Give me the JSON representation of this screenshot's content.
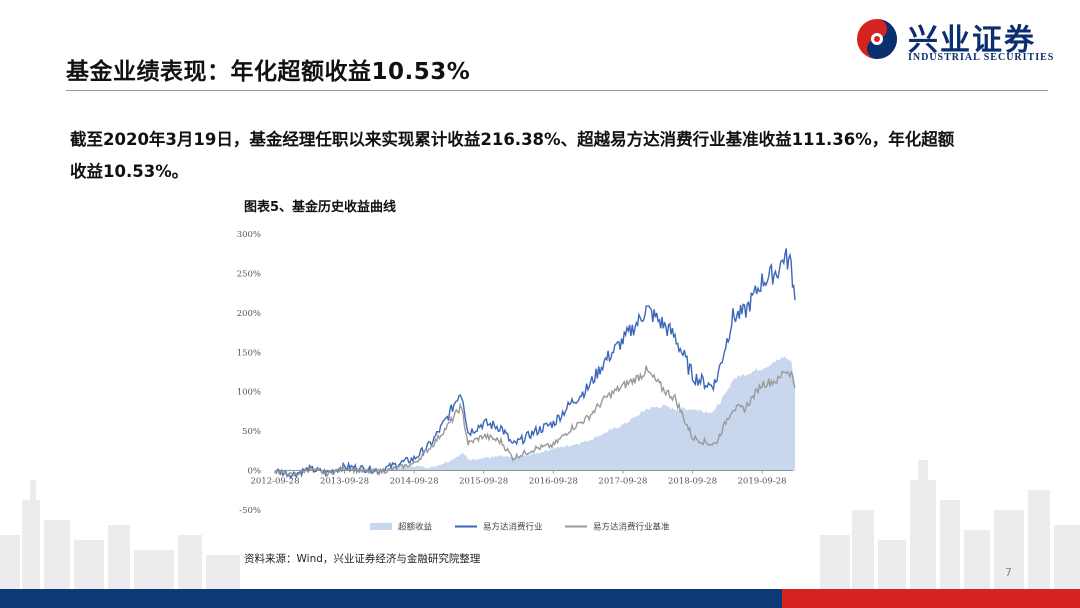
{
  "brand": {
    "name_cn": "兴业证券",
    "name_en": "INDUSTRIAL SECURITIES",
    "logo_colors": {
      "red": "#d5241f",
      "blue": "#0a2f6e"
    }
  },
  "slide": {
    "title": "基金业绩表现：年化超额收益10.53%",
    "summary": "截至2020年3月19日，基金经理任职以来实现累计收益216.38%、超越易方达消费行业基准收益111.36%，年化超额收益10.53%。",
    "chart_title": "图表5、基金历史收益曲线",
    "source": "资料来源：Wind，兴业证券经济与金融研究院整理",
    "page_number": "7"
  },
  "colors": {
    "fund": "#3c67b8",
    "benchmark": "#9a9a9a",
    "excess_fill": "#c9d7ee",
    "bar_blue": "#0e3977",
    "bar_red": "#d5241f"
  },
  "chart_data": {
    "type": "line",
    "title": "",
    "xlabel": "",
    "ylabel": "",
    "x_tick_labels": [
      "2012-09-28",
      "2013-09-28",
      "2014-09-28",
      "2015-09-28",
      "2016-09-28",
      "2017-09-28",
      "2018-09-28",
      "2019-09-28"
    ],
    "y_tick_labels": [
      "300%",
      "250%",
      "200%",
      "150%",
      "100%",
      "50%",
      "0%",
      "-50%"
    ],
    "ylim": [
      -50,
      300
    ],
    "grid": false,
    "legend_position": "bottom",
    "x": [
      "2012-09-28",
      "2012-12-28",
      "2013-03-28",
      "2013-06-28",
      "2013-09-28",
      "2013-12-28",
      "2014-03-28",
      "2014-06-28",
      "2014-09-28",
      "2014-12-28",
      "2015-03-28",
      "2015-05-28",
      "2015-06-12",
      "2015-07-08",
      "2015-09-28",
      "2015-12-28",
      "2016-02-28",
      "2016-06-28",
      "2016-09-28",
      "2016-12-28",
      "2017-03-28",
      "2017-06-28",
      "2017-09-28",
      "2017-12-28",
      "2018-01-28",
      "2018-04-28",
      "2018-06-28",
      "2018-09-28",
      "2018-12-28",
      "2019-01-28",
      "2019-03-28",
      "2019-04-28",
      "2019-06-28",
      "2019-09-28",
      "2019-12-28",
      "2020-01-20",
      "2020-02-28",
      "2020-03-19"
    ],
    "series": [
      {
        "name": "超额收益",
        "style": "area",
        "color": "#c9d7ee",
        "values": [
          0,
          1,
          0,
          1,
          2,
          4,
          2,
          5,
          6,
          4,
          12,
          20,
          22,
          14,
          16,
          18,
          16,
          22,
          28,
          32,
          38,
          48,
          58,
          72,
          78,
          82,
          78,
          78,
          74,
          78,
          100,
          116,
          122,
          130,
          140,
          145,
          138,
          111
        ]
      },
      {
        "name": "易方达消费行业",
        "style": "line",
        "color": "#3c67b8",
        "values": [
          0,
          -5,
          2,
          -3,
          5,
          3,
          0,
          8,
          15,
          35,
          70,
          100,
          92,
          48,
          60,
          55,
          32,
          50,
          60,
          85,
          105,
          140,
          165,
          192,
          205,
          185,
          170,
          120,
          108,
          112,
          165,
          195,
          200,
          240,
          255,
          272,
          262,
          216
        ]
      },
      {
        "name": "易方达消费行业基准",
        "style": "line",
        "color": "#9a9a9a",
        "values": [
          0,
          -6,
          2,
          -4,
          3,
          -1,
          -2,
          3,
          9,
          31,
          58,
          80,
          70,
          34,
          44,
          37,
          16,
          28,
          32,
          53,
          67,
          92,
          107,
          120,
          127,
          103,
          92,
          42,
          34,
          34,
          65,
          79,
          78,
          110,
          115,
          127,
          124,
          105
        ]
      }
    ]
  }
}
